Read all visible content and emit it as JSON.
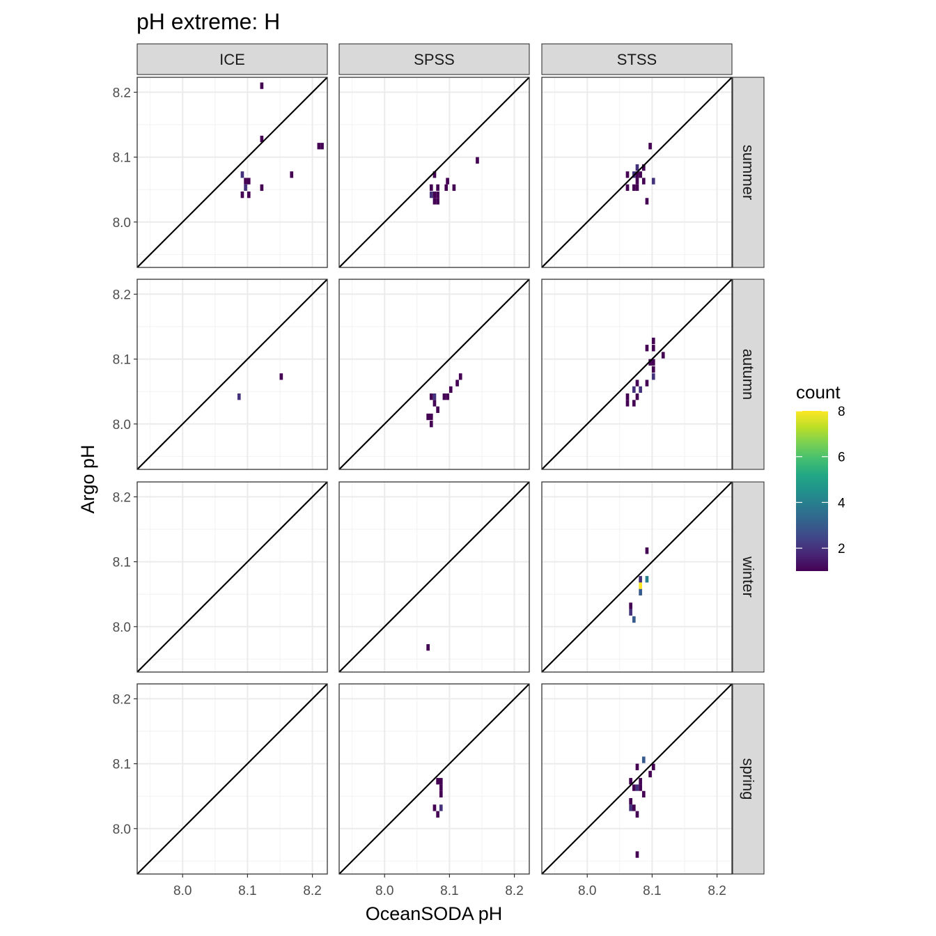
{
  "chart_data": {
    "type": "heatmap",
    "title": "pH extreme: H",
    "xlabel": "OceanSODA pH",
    "ylabel": "Argo pH",
    "xlim": [
      7.93,
      8.223
    ],
    "ylim": [
      7.93,
      8.223
    ],
    "x_ticks": [
      "8.0",
      "8.1",
      "8.2"
    ],
    "y_ticks": [
      "8.0",
      "8.1",
      "8.2"
    ],
    "x_tick_values": [
      8.0,
      8.1,
      8.2
    ],
    "y_tick_values": [
      8.0,
      8.1,
      8.2
    ],
    "grid": true,
    "identity_line": true,
    "columns": [
      "ICE",
      "SPSS",
      "STSS"
    ],
    "rows": [
      "summer",
      "autumn",
      "winter",
      "spring"
    ],
    "bin_size": [
      0.005,
      0.01
    ],
    "legend": {
      "title": "count",
      "position": "right",
      "min": 1,
      "max": 8,
      "ticks": [
        2,
        4,
        6,
        8
      ],
      "tick_labels": [
        "2",
        "4",
        "6",
        "8"
      ],
      "colormap": "viridis",
      "colors": [
        "#440154",
        "#482475",
        "#414487",
        "#355f8d",
        "#2a788e",
        "#21918c",
        "#22a884",
        "#44bf70",
        "#7ad151",
        "#bddf26",
        "#fde725"
      ]
    },
    "panels": [
      {
        "column": "ICE",
        "row": "summer",
        "cells": [
          [
            8.122,
            8.21,
            1
          ],
          [
            8.122,
            8.128,
            1
          ],
          [
            8.21,
            8.117,
            1
          ],
          [
            8.215,
            8.117,
            1
          ],
          [
            8.168,
            8.073,
            1
          ],
          [
            8.092,
            8.073,
            2
          ],
          [
            8.097,
            8.063,
            1
          ],
          [
            8.102,
            8.063,
            1
          ],
          [
            8.097,
            8.053,
            2
          ],
          [
            8.122,
            8.053,
            1
          ],
          [
            8.092,
            8.042,
            1
          ],
          [
            8.102,
            8.042,
            1
          ]
        ]
      },
      {
        "column": "SPSS",
        "row": "summer",
        "cells": [
          [
            8.143,
            8.095,
            1
          ],
          [
            8.077,
            8.073,
            1
          ],
          [
            8.097,
            8.063,
            1
          ],
          [
            8.072,
            8.053,
            1
          ],
          [
            8.082,
            8.053,
            1
          ],
          [
            8.095,
            8.053,
            1
          ],
          [
            8.107,
            8.053,
            1
          ],
          [
            8.072,
            8.042,
            2
          ],
          [
            8.077,
            8.042,
            1
          ],
          [
            8.082,
            8.042,
            1
          ],
          [
            8.077,
            8.032,
            1
          ],
          [
            8.082,
            8.032,
            1
          ]
        ]
      },
      {
        "column": "STSS",
        "row": "summer",
        "cells": [
          [
            8.097,
            8.117,
            1
          ],
          [
            8.077,
            8.084,
            2
          ],
          [
            8.087,
            8.084,
            1
          ],
          [
            8.062,
            8.073,
            1
          ],
          [
            8.072,
            8.073,
            2
          ],
          [
            8.077,
            8.073,
            1
          ],
          [
            8.082,
            8.073,
            1
          ],
          [
            8.077,
            8.063,
            1
          ],
          [
            8.087,
            8.063,
            1
          ],
          [
            8.102,
            8.063,
            2
          ],
          [
            8.062,
            8.053,
            1
          ],
          [
            8.072,
            8.053,
            1
          ],
          [
            8.077,
            8.053,
            1
          ],
          [
            8.092,
            8.032,
            1
          ]
        ]
      },
      {
        "column": "ICE",
        "row": "autumn",
        "cells": [
          [
            8.152,
            8.073,
            1
          ],
          [
            8.087,
            8.042,
            2
          ]
        ]
      },
      {
        "column": "SPSS",
        "row": "autumn",
        "cells": [
          [
            8.117,
            8.073,
            1
          ],
          [
            8.112,
            8.063,
            1
          ],
          [
            8.102,
            8.053,
            1
          ],
          [
            8.072,
            8.042,
            1
          ],
          [
            8.077,
            8.042,
            2
          ],
          [
            8.092,
            8.042,
            1
          ],
          [
            8.097,
            8.042,
            1
          ],
          [
            8.077,
            8.032,
            1
          ],
          [
            8.082,
            8.022,
            1
          ],
          [
            8.067,
            8.011,
            1
          ],
          [
            8.072,
            8.011,
            1
          ],
          [
            8.072,
            8.0,
            1
          ]
        ]
      },
      {
        "column": "STSS",
        "row": "autumn",
        "cells": [
          [
            8.102,
            8.128,
            1
          ],
          [
            8.092,
            8.117,
            1
          ],
          [
            8.102,
            8.117,
            1
          ],
          [
            8.117,
            8.106,
            1
          ],
          [
            8.097,
            8.095,
            1
          ],
          [
            8.102,
            8.095,
            1
          ],
          [
            8.102,
            8.084,
            1
          ],
          [
            8.092,
            8.063,
            1
          ],
          [
            8.102,
            8.073,
            2
          ],
          [
            8.077,
            8.063,
            1
          ],
          [
            8.072,
            8.053,
            2
          ],
          [
            8.082,
            8.053,
            2
          ],
          [
            8.062,
            8.042,
            1
          ],
          [
            8.077,
            8.042,
            1
          ],
          [
            8.062,
            8.032,
            1
          ],
          [
            8.072,
            8.032,
            1
          ]
        ]
      },
      {
        "column": "ICE",
        "row": "winter",
        "cells": []
      },
      {
        "column": "SPSS",
        "row": "winter",
        "cells": [
          [
            8.067,
            7.968,
            1
          ]
        ]
      },
      {
        "column": "STSS",
        "row": "winter",
        "cells": [
          [
            8.092,
            8.117,
            1
          ],
          [
            8.082,
            8.073,
            2
          ],
          [
            8.092,
            8.073,
            4
          ],
          [
            8.082,
            8.063,
            8
          ],
          [
            8.082,
            8.053,
            3
          ],
          [
            8.067,
            8.032,
            1
          ],
          [
            8.067,
            8.022,
            2
          ],
          [
            8.072,
            8.011,
            3
          ]
        ]
      },
      {
        "column": "ICE",
        "row": "spring",
        "cells": []
      },
      {
        "column": "SPSS",
        "row": "spring",
        "cells": [
          [
            8.082,
            8.073,
            1
          ],
          [
            8.087,
            8.073,
            1
          ],
          [
            8.087,
            8.063,
            1
          ],
          [
            8.087,
            8.053,
            1
          ],
          [
            8.077,
            8.032,
            1
          ],
          [
            8.087,
            8.032,
            2
          ],
          [
            8.082,
            8.022,
            1
          ]
        ]
      },
      {
        "column": "STSS",
        "row": "spring",
        "cells": [
          [
            8.087,
            8.106,
            3
          ],
          [
            8.077,
            8.095,
            1
          ],
          [
            8.102,
            8.095,
            1
          ],
          [
            8.097,
            8.084,
            1
          ],
          [
            8.067,
            8.073,
            1
          ],
          [
            8.082,
            8.073,
            1
          ],
          [
            8.072,
            8.063,
            1
          ],
          [
            8.077,
            8.063,
            2
          ],
          [
            8.082,
            8.063,
            1
          ],
          [
            8.087,
            8.053,
            1
          ],
          [
            8.067,
            8.042,
            1
          ],
          [
            8.067,
            8.032,
            2
          ],
          [
            8.072,
            8.032,
            1
          ],
          [
            8.077,
            8.022,
            1
          ],
          [
            8.077,
            7.96,
            1
          ]
        ]
      }
    ]
  }
}
